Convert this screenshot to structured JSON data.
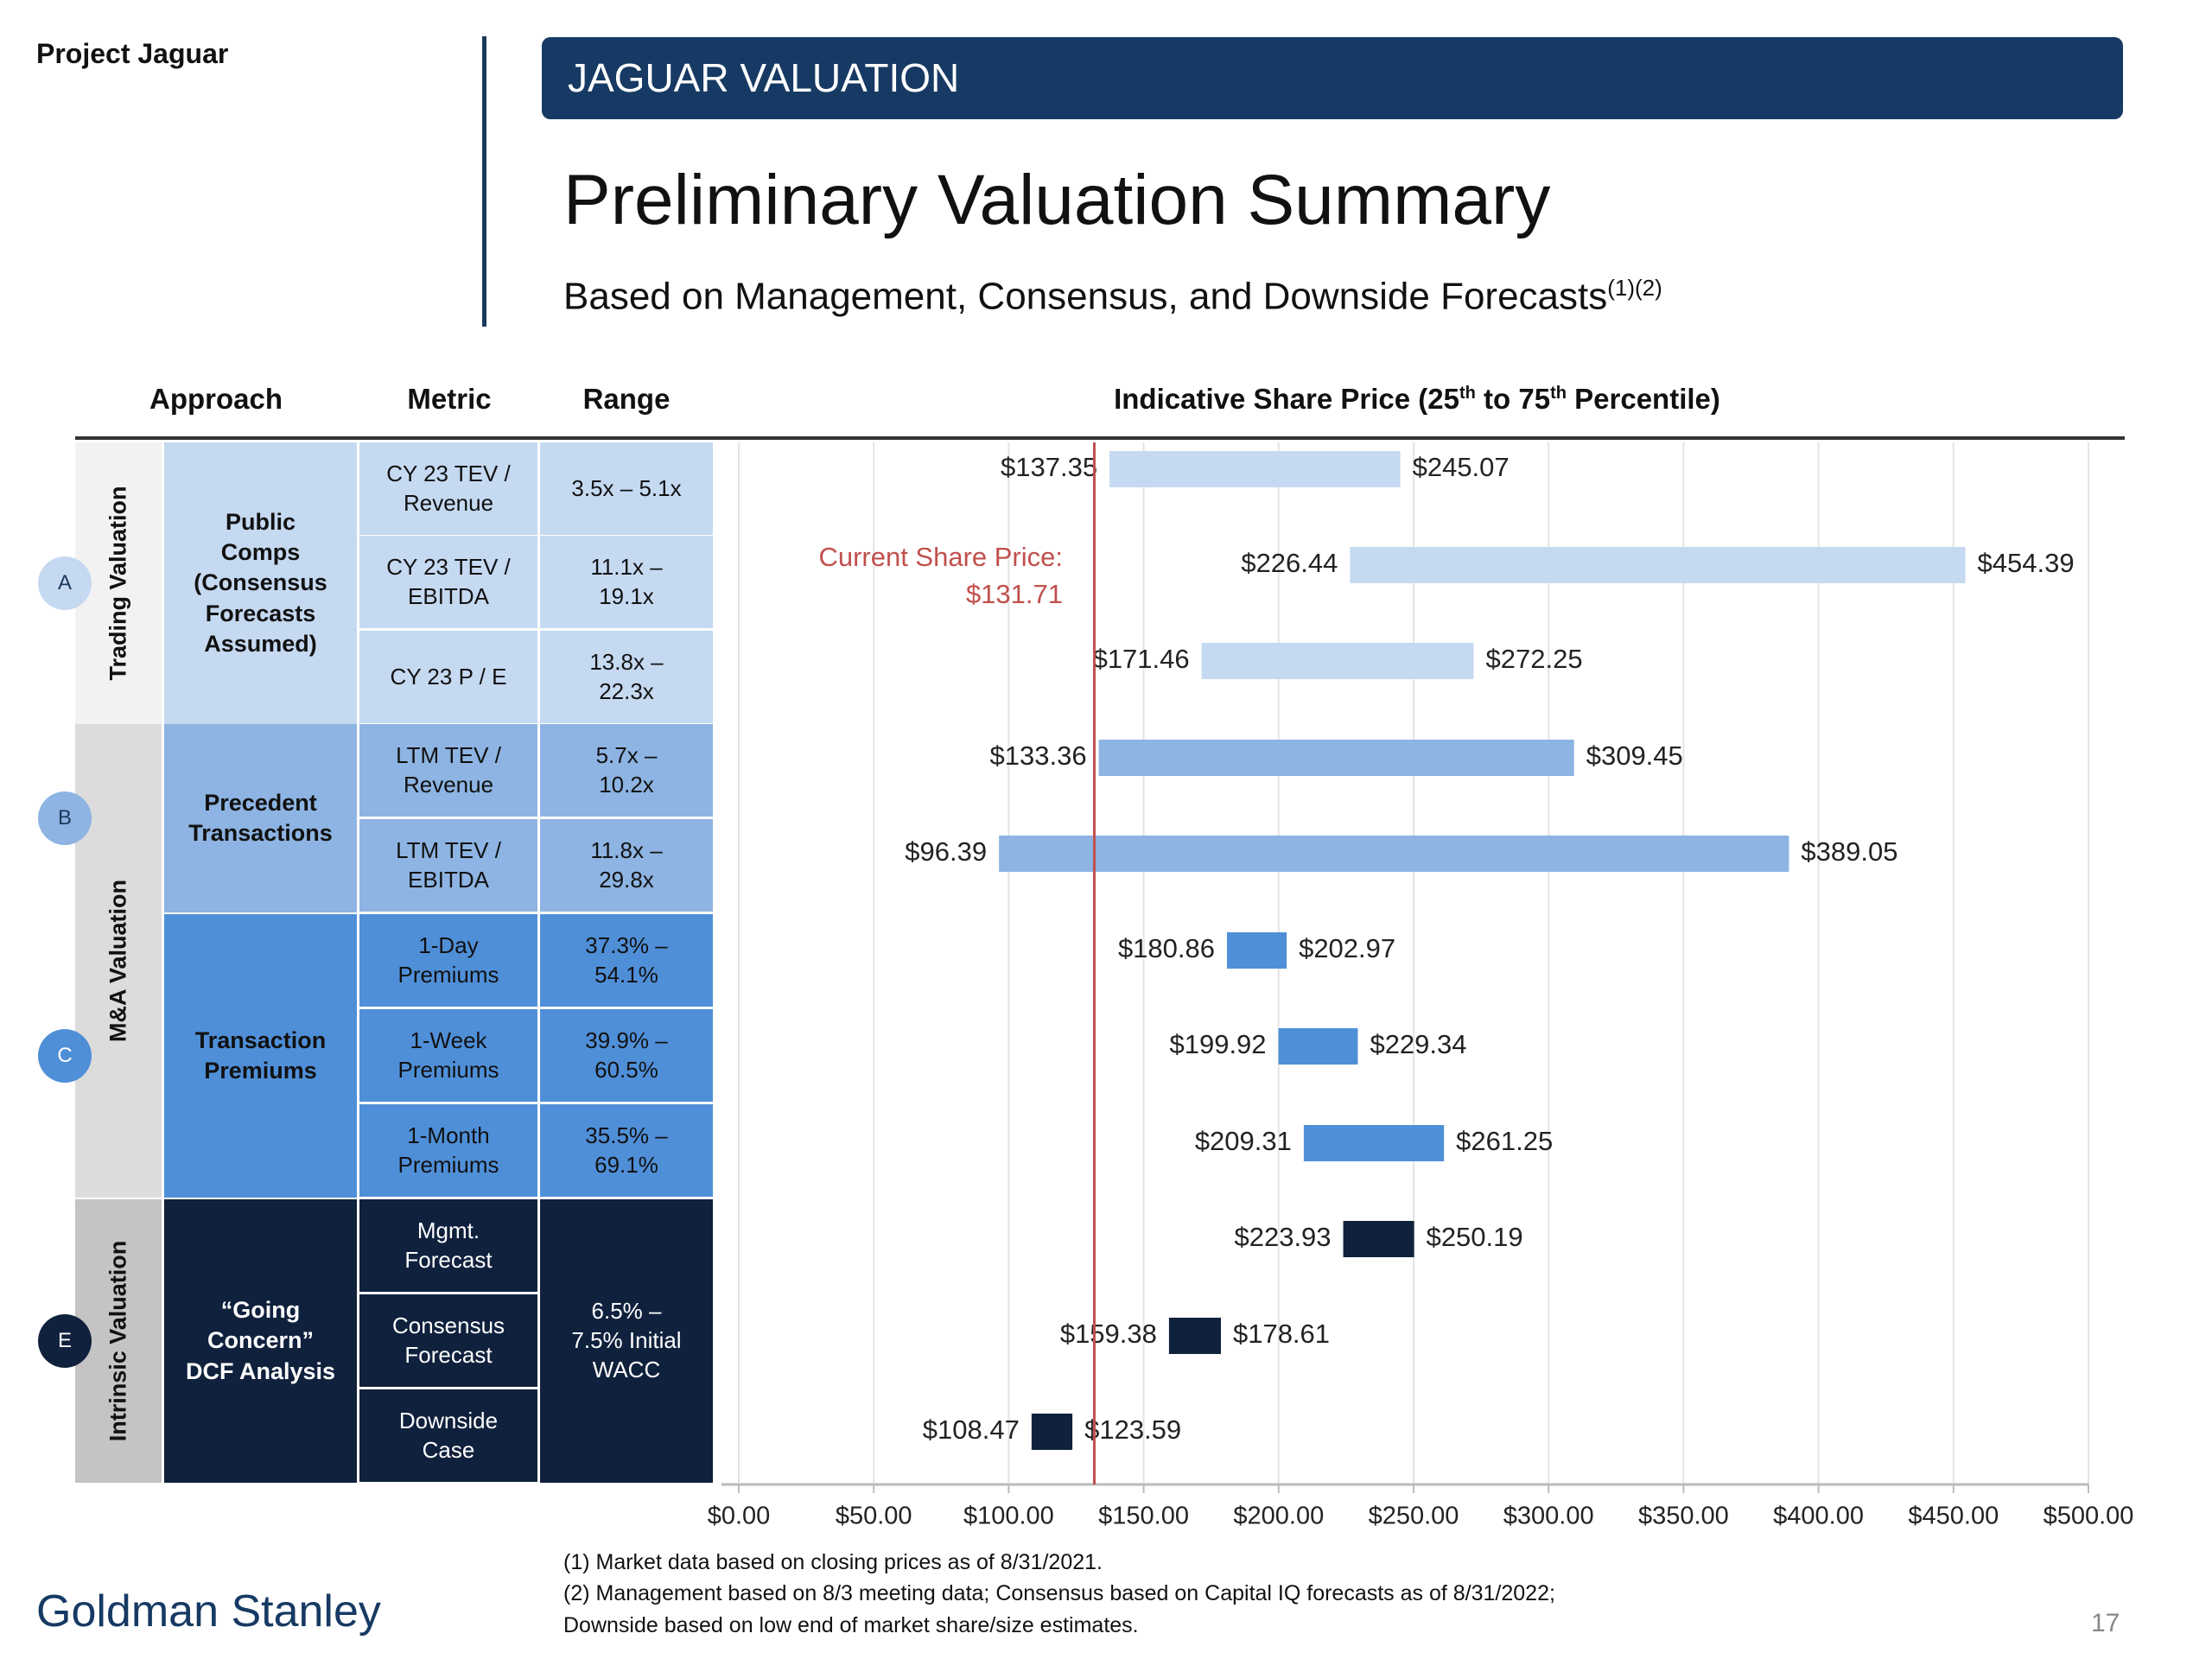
{
  "header": {
    "project": "Project Jaguar",
    "banner": "JAGUAR VALUATION",
    "title": "Preliminary Valuation Summary",
    "subtitle": "Based on Management, Consensus, and Downside Forecasts",
    "subtitle_refs": "(1)(2)"
  },
  "columns": {
    "approach": "Approach",
    "metric": "Metric",
    "range": "Range",
    "chart_title": "Indicative Share Price (25",
    "chart_title_sup1": "th",
    "chart_title_mid": " to 75",
    "chart_title_sup2": "th",
    "chart_title_end": " Percentile)"
  },
  "groups": [
    {
      "label": "Trading Valuation",
      "fill": "#f2f2f2"
    },
    {
      "label": "M&A Valuation",
      "fill": "#dcdcdc"
    },
    {
      "label": "Intrinsic Valuation",
      "fill": "#c4c4c4"
    }
  ],
  "approaches": [
    {
      "badge": "A",
      "label": "Public\nComps\n(Consensus\nForecasts\nAssumed)",
      "fill": "#c5d9f1",
      "text": "#111111",
      "badge_fill": "#c5d9f1",
      "badge_text": "#1b3a5c"
    },
    {
      "badge": "B",
      "label": "Precedent\nTransactions",
      "fill": "#8db4e2",
      "text": "#111111",
      "badge_fill": "#8db4e2",
      "badge_text": "#1b3a5c"
    },
    {
      "badge": "C",
      "label": "Transaction\nPremiums",
      "fill": "#4f8fd8",
      "text": "#111111",
      "badge_fill": "#4f8fd8",
      "badge_text": "#ffffff"
    },
    {
      "badge": "E",
      "label": "“Going\nConcern”\nDCF Analysis",
      "fill": "#10213d",
      "text": "#ffffff",
      "badge_fill": "#10213d",
      "badge_text": "#ffffff"
    }
  ],
  "rows": [
    {
      "metric": "CY 23 TEV /\nRevenue",
      "range": "3.5x – 5.1x"
    },
    {
      "metric": "CY 23 TEV /\nEBITDA",
      "range": "11.1x –\n19.1x"
    },
    {
      "metric": "CY 23 P / E",
      "range": "13.8x –\n22.3x"
    },
    {
      "metric": "LTM TEV /\nRevenue",
      "range": "5.7x –\n10.2x"
    },
    {
      "metric": "LTM TEV /\nEBITDA",
      "range": "11.8x –\n29.8x"
    },
    {
      "metric": "1-Day\nPremiums",
      "range": "37.3% –\n54.1%"
    },
    {
      "metric": "1-Week\nPremiums",
      "range": "39.9% –\n60.5%"
    },
    {
      "metric": "1-Month\nPremiums",
      "range": "35.5% –\n69.1%"
    },
    {
      "metric": "Mgmt.\nForecast",
      "range": ""
    },
    {
      "metric": "Consensus\nForecast",
      "range": ""
    },
    {
      "metric": "Downside\nCase",
      "range": ""
    }
  ],
  "dcf_range": "6.5% –\n7.5% Initial\nWACC",
  "chart_data": {
    "type": "floating-bar",
    "orientation": "horizontal",
    "xlim": [
      0,
      500
    ],
    "x_ticks": [
      "$0.00",
      "$50.00",
      "$100.00",
      "$150.00",
      "$200.00",
      "$250.00",
      "$300.00",
      "$350.00",
      "$400.00",
      "$450.00",
      "$500.00"
    ],
    "grid": true,
    "bars": [
      {
        "low": 137.35,
        "high": 245.07,
        "low_label": "$137.35",
        "high_label": "$245.07",
        "color": "#c5d9f1"
      },
      {
        "low": 226.44,
        "high": 454.39,
        "low_label": "$226.44",
        "high_label": "$454.39",
        "color": "#c5d9f1"
      },
      {
        "low": 171.46,
        "high": 272.25,
        "low_label": "$171.46",
        "high_label": "$272.25",
        "color": "#c5d9f1"
      },
      {
        "low": 133.36,
        "high": 309.45,
        "low_label": "$133.36",
        "high_label": "$309.45",
        "color": "#8db4e2"
      },
      {
        "low": 96.39,
        "high": 389.05,
        "low_label": "$96.39",
        "high_label": "$389.05",
        "color": "#8db4e2"
      },
      {
        "low": 180.86,
        "high": 202.97,
        "low_label": "$180.86",
        "high_label": "$202.97",
        "color": "#4f8fd8"
      },
      {
        "low": 199.92,
        "high": 229.34,
        "low_label": "$199.92",
        "high_label": "$229.34",
        "color": "#4f8fd8"
      },
      {
        "low": 209.31,
        "high": 261.25,
        "low_label": "$209.31",
        "high_label": "$261.25",
        "color": "#4f8fd8"
      },
      {
        "low": 223.93,
        "high": 250.19,
        "low_label": "$223.93",
        "high_label": "$250.19",
        "color": "#10213d"
      },
      {
        "low": 159.38,
        "high": 178.61,
        "low_label": "$159.38",
        "high_label": "$178.61",
        "color": "#10213d"
      },
      {
        "low": 108.47,
        "high": 123.59,
        "low_label": "$108.47",
        "high_label": "$123.59",
        "color": "#10213d"
      }
    ],
    "reference_line": {
      "value": 131.71,
      "label_line1": "Current Share Price:",
      "label_line2": "$131.71",
      "color": "#c0504d"
    }
  },
  "footnotes": [
    "(1) Market data based on closing prices as of 8/31/2021.",
    "(2) Management based on 8/3 meeting data; Consensus based on Capital IQ forecasts as of 8/31/2022; Downside based on low end of market share/size estimates."
  ],
  "footer": {
    "logo": "Goldman Stanley",
    "page": "17"
  }
}
